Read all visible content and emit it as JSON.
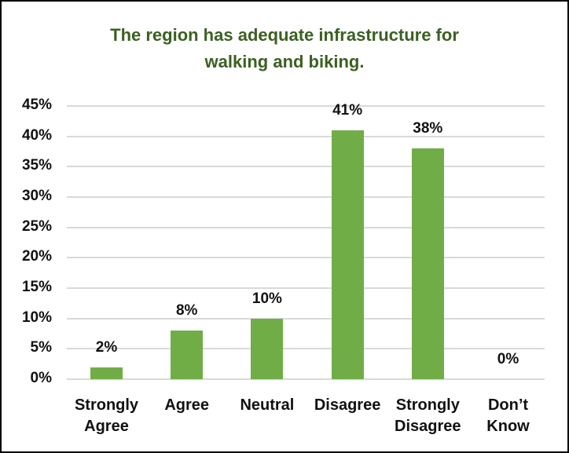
{
  "chart_data": {
    "type": "bar",
    "title": "The region has adequate infrastructure for walking and biking.",
    "title_lines": [
      "The region has adequate infrastructure for",
      "walking and biking."
    ],
    "categories": [
      "Strongly Agree",
      "Agree",
      "Neutral",
      "Disagree",
      "Strongly Disagree",
      "Don’t Know"
    ],
    "category_lines": [
      [
        "Strongly",
        "Agree"
      ],
      [
        "Agree",
        ""
      ],
      [
        "Neutral",
        ""
      ],
      [
        "Disagree",
        ""
      ],
      [
        "Strongly",
        "Disagree"
      ],
      [
        "Don’t",
        "Know"
      ]
    ],
    "values": [
      2,
      8,
      10,
      41,
      38,
      0
    ],
    "value_labels": [
      "2%",
      "8%",
      "10%",
      "41%",
      "38%",
      "0%"
    ],
    "xlabel": "",
    "ylabel": "",
    "ylim": [
      0,
      45
    ],
    "yticks": [
      "0%",
      "5%",
      "10%",
      "15%",
      "20%",
      "25%",
      "30%",
      "35%",
      "40%",
      "45%"
    ],
    "grid": true,
    "legend": "none",
    "bar_color": "#70ad47",
    "title_color": "#3b6021"
  }
}
